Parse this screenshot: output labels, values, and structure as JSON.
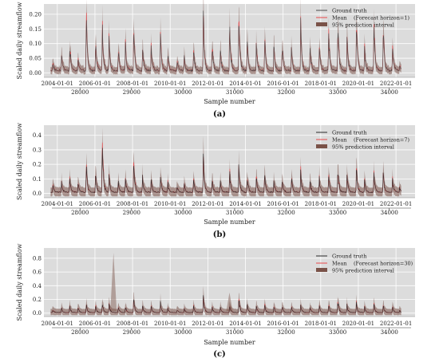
{
  "chart_data": [
    {
      "type": "line",
      "panel_label": "(a)",
      "xlabel": "Sample number",
      "ylabel": "Scaled daily streamflow",
      "xlim": [
        27300,
        34500
      ],
      "ylim": [
        -0.015,
        0.235
      ],
      "yticks": [
        0.0,
        0.05,
        0.1,
        0.15,
        0.2
      ],
      "ytick_labels": [
        "0.00",
        "0.05",
        "0.10",
        "0.15",
        "0.20"
      ],
      "xticks": [
        28000,
        29000,
        30000,
        31000,
        32000,
        33000,
        34000
      ],
      "xtick_labels": [
        "28000",
        "29000",
        "30000",
        "31000",
        "32000",
        "33000",
        "34000"
      ],
      "date_ticks": [
        27560,
        28290,
        29020,
        29750,
        30480,
        31210,
        31940,
        32670,
        33400,
        34130
      ],
      "date_labels": [
        "2004-01-01",
        "2006-01-01",
        "2008-01-01",
        "2010-01-01",
        "2012-01-01",
        "2014-01-01",
        "2016-01-01",
        "2018-01-01",
        "2020-01-01",
        "2022-01-01"
      ],
      "legend": [
        "Ground truth",
        "Mean",
        "95% prediction interval"
      ],
      "legend_note": "(Forecast horizon=1)",
      "legend_position": "top-right",
      "series": [
        {
          "name": "Ground truth",
          "color": "#4a4a4a"
        },
        {
          "name": "Mean",
          "color": "#e8474a"
        },
        {
          "name": "95% prediction interval",
          "color": "#7a5248"
        }
      ],
      "peaks": [
        [
          27470,
          0.03
        ],
        [
          27640,
          0.07
        ],
        [
          27800,
          0.09
        ],
        [
          27960,
          0.05
        ],
        [
          28120,
          0.19
        ],
        [
          28300,
          0.13
        ],
        [
          28430,
          0.18
        ],
        [
          28560,
          0.11
        ],
        [
          28740,
          0.08
        ],
        [
          28880,
          0.09
        ],
        [
          29040,
          0.16
        ],
        [
          29210,
          0.1
        ],
        [
          29380,
          0.09
        ],
        [
          29560,
          0.12
        ],
        [
          29700,
          0.07
        ],
        [
          29880,
          0.04
        ],
        [
          30020,
          0.05
        ],
        [
          30200,
          0.09
        ],
        [
          30390,
          0.21
        ],
        [
          30560,
          0.1
        ],
        [
          30720,
          0.08
        ],
        [
          30900,
          0.19
        ],
        [
          31080,
          0.22
        ],
        [
          31240,
          0.12
        ],
        [
          31420,
          0.1
        ],
        [
          31580,
          0.13
        ],
        [
          31760,
          0.09
        ],
        [
          31920,
          0.11
        ],
        [
          32100,
          0.08
        ],
        [
          32280,
          0.16
        ],
        [
          32460,
          0.09
        ],
        [
          32640,
          0.11
        ],
        [
          32820,
          0.15
        ],
        [
          33000,
          0.18
        ],
        [
          33180,
          0.11
        ],
        [
          33360,
          0.19
        ],
        [
          33520,
          0.08
        ],
        [
          33700,
          0.19
        ],
        [
          33880,
          0.16
        ],
        [
          34060,
          0.1
        ],
        [
          34200,
          0.02
        ]
      ]
    },
    {
      "type": "line",
      "panel_label": "(b)",
      "xlabel": "Sample number",
      "ylabel": "Scaled daily streamflow",
      "xlim": [
        27300,
        34500
      ],
      "ylim": [
        -0.03,
        0.47
      ],
      "yticks": [
        0.0,
        0.1,
        0.2,
        0.3,
        0.4
      ],
      "ytick_labels": [
        "0.0",
        "0.1",
        "0.2",
        "0.3",
        "0.4"
      ],
      "xticks": [
        28000,
        29000,
        30000,
        31000,
        32000,
        33000,
        34000
      ],
      "xtick_labels": [
        "28000",
        "29000",
        "30000",
        "31000",
        "32000",
        "33000",
        "34000"
      ],
      "date_ticks": [
        27560,
        28290,
        29020,
        29750,
        30480,
        31210,
        31940,
        32670,
        33400,
        34130
      ],
      "date_labels": [
        "2004-01-01",
        "2006-01-01",
        "2008-01-01",
        "2010-01-01",
        "2012-01-01",
        "2014-01-01",
        "2016-01-01",
        "2018-01-01",
        "2020-01-01",
        "2022-01-01"
      ],
      "legend": [
        "Ground truth",
        "Mean",
        "95% prediction interval"
      ],
      "legend_note": "(Forecast horizon=7)",
      "legend_position": "top-right",
      "series": [
        {
          "name": "Ground truth",
          "color": "#2b2b2b"
        },
        {
          "name": "Mean",
          "color": "#e8474a"
        },
        {
          "name": "95% prediction interval",
          "color": "#7a5248"
        }
      ],
      "peaks": [
        [
          27470,
          0.05
        ],
        [
          27640,
          0.07
        ],
        [
          27800,
          0.1
        ],
        [
          27960,
          0.08
        ],
        [
          28120,
          0.19
        ],
        [
          28300,
          0.14
        ],
        [
          28430,
          0.38
        ],
        [
          28560,
          0.12
        ],
        [
          28740,
          0.09
        ],
        [
          28880,
          0.1
        ],
        [
          29040,
          0.22
        ],
        [
          29210,
          0.12
        ],
        [
          29380,
          0.09
        ],
        [
          29560,
          0.12
        ],
        [
          29700,
          0.07
        ],
        [
          29880,
          0.05
        ],
        [
          30020,
          0.06
        ],
        [
          30200,
          0.1
        ],
        [
          30390,
          0.27
        ],
        [
          30560,
          0.1
        ],
        [
          30720,
          0.09
        ],
        [
          30900,
          0.15
        ],
        [
          31080,
          0.21
        ],
        [
          31240,
          0.13
        ],
        [
          31420,
          0.1
        ],
        [
          31580,
          0.14
        ],
        [
          31760,
          0.09
        ],
        [
          31920,
          0.11
        ],
        [
          32100,
          0.1
        ],
        [
          32280,
          0.15
        ],
        [
          32460,
          0.09
        ],
        [
          32640,
          0.11
        ],
        [
          32820,
          0.14
        ],
        [
          33000,
          0.18
        ],
        [
          33180,
          0.11
        ],
        [
          33360,
          0.17
        ],
        [
          33520,
          0.08
        ],
        [
          33700,
          0.15
        ],
        [
          33880,
          0.14
        ],
        [
          34060,
          0.1
        ],
        [
          34200,
          0.03
        ]
      ]
    },
    {
      "type": "line",
      "panel_label": "(c)",
      "xlabel": "Sample number",
      "ylabel": "Scaled daily streamflow",
      "xlim": [
        27300,
        34500
      ],
      "ylim": [
        -0.05,
        0.95
      ],
      "yticks": [
        0.0,
        0.2,
        0.4,
        0.6,
        0.8
      ],
      "ytick_labels": [
        "0.0",
        "0.2",
        "0.4",
        "0.6",
        "0.8"
      ],
      "xticks": [
        28000,
        29000,
        30000,
        31000,
        32000,
        33000,
        34000
      ],
      "xtick_labels": [
        "28000",
        "29000",
        "30000",
        "31000",
        "32000",
        "33000",
        "34000"
      ],
      "date_ticks": [
        27560,
        28290,
        29020,
        29750,
        30480,
        31210,
        31940,
        32670,
        33400,
        34130
      ],
      "date_labels": [
        "2004-01-01",
        "2006-01-01",
        "2008-01-01",
        "2010-01-01",
        "2012-01-01",
        "2014-01-01",
        "2016-01-01",
        "2018-01-01",
        "2020-01-01",
        "2022-01-01"
      ],
      "legend": [
        "Ground truth",
        "Mean",
        "95% prediction interval"
      ],
      "legend_note": "(Forecast horizon=30)",
      "legend_position": "top-right",
      "series": [
        {
          "name": "Ground truth",
          "color": "#2b2b2b"
        },
        {
          "name": "Mean",
          "color": "#e8474a"
        },
        {
          "name": "95% prediction interval",
          "color": "#7a5248"
        }
      ],
      "peaks": [
        [
          27470,
          0.05
        ],
        [
          27640,
          0.07
        ],
        [
          27800,
          0.09
        ],
        [
          27960,
          0.08
        ],
        [
          28120,
          0.12
        ],
        [
          28300,
          0.1
        ],
        [
          28430,
          0.15
        ],
        [
          28560,
          0.14
        ],
        [
          28740,
          0.1
        ],
        [
          28880,
          0.09
        ],
        [
          29040,
          0.2
        ],
        [
          29210,
          0.11
        ],
        [
          29380,
          0.09
        ],
        [
          29560,
          0.14
        ],
        [
          29700,
          0.07
        ],
        [
          29880,
          0.05
        ],
        [
          30020,
          0.06
        ],
        [
          30200,
          0.1
        ],
        [
          30390,
          0.25
        ],
        [
          30560,
          0.1
        ],
        [
          30720,
          0.09
        ],
        [
          30900,
          0.12
        ],
        [
          31080,
          0.22
        ],
        [
          31240,
          0.14
        ],
        [
          31420,
          0.1
        ],
        [
          31580,
          0.12
        ],
        [
          31760,
          0.09
        ],
        [
          31920,
          0.11
        ],
        [
          32100,
          0.1
        ],
        [
          32280,
          0.12
        ],
        [
          32460,
          0.09
        ],
        [
          32640,
          0.11
        ],
        [
          32820,
          0.14
        ],
        [
          33000,
          0.18
        ],
        [
          33180,
          0.11
        ],
        [
          33360,
          0.14
        ],
        [
          33520,
          0.08
        ],
        [
          33700,
          0.12
        ],
        [
          33880,
          0.12
        ],
        [
          34060,
          0.1
        ],
        [
          34200,
          0.03
        ]
      ],
      "interval_spikes": [
        [
          28650,
          0.88
        ],
        [
          30900,
          0.3
        ]
      ]
    }
  ]
}
